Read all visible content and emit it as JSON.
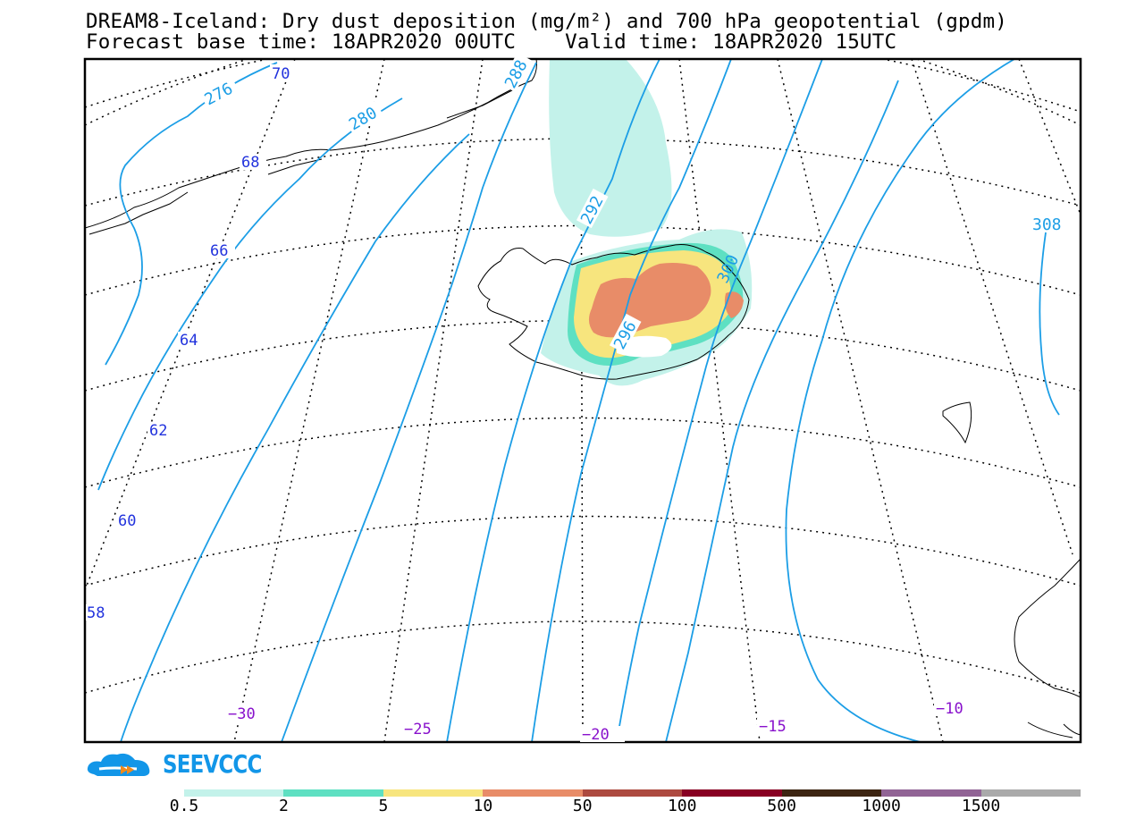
{
  "title": {
    "line1": "DREAM8-Iceland: Dry dust deposition (mg/m²) and 700 hPa geopotential (gpdm)",
    "line2": "Forecast base time: 18APR2020 00UTC    Valid time: 18APR2020 15UTC"
  },
  "map": {
    "latitude_labels": [
      "70",
      "68",
      "66",
      "64",
      "62",
      "60",
      "58"
    ],
    "longitude_labels": [
      "−30",
      "−25",
      "−20",
      "−15",
      "−10"
    ],
    "contour_labels": [
      "276",
      "280",
      "288",
      "292",
      "296",
      "300",
      "308"
    ],
    "contour_color": "#1c9ee6",
    "latitude_label_color": "#2233dd",
    "longitude_label_color": "#8811cc"
  },
  "logo": {
    "text": "SEEVCCC",
    "icon": "cloud-logo-icon",
    "color": "#1296e8"
  },
  "colorbar": {
    "labels": [
      "0.5",
      "2",
      "5",
      "10",
      "50",
      "100",
      "500",
      "1000",
      "1500"
    ],
    "colors": [
      "#c3f2ea",
      "#5ee0c2",
      "#f7e57e",
      "#e88c68",
      "#ad4a40",
      "#880022",
      "#3d2512",
      "#916495",
      "#aaaaaa"
    ]
  }
}
